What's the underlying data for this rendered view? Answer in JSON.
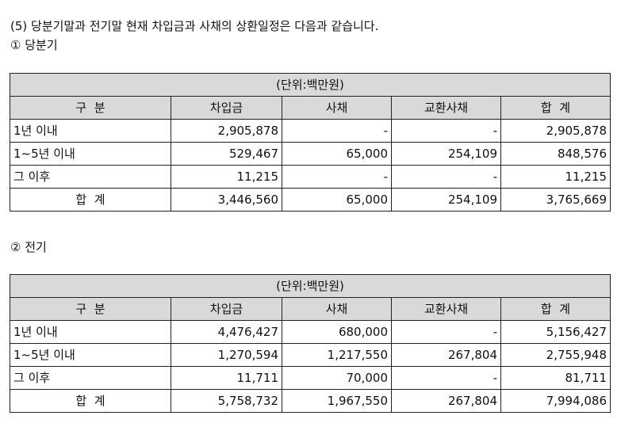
{
  "title": "(5) 당분기말과 전기말 현재 차입금과 사채의 상환일정은 다음과 같습니다.",
  "sections": [
    {
      "heading": "① 당분기",
      "unit": "(단위:백만원)",
      "headers": [
        "구  분",
        "차입금",
        "사채",
        "교환사채",
        "합  계"
      ],
      "rows": [
        {
          "label": "1년 이내",
          "values": [
            "2,905,878",
            "-",
            "-",
            "2,905,878"
          ]
        },
        {
          "label": "1~5년 이내",
          "values": [
            "529,467",
            "65,000",
            "254,109",
            "848,576"
          ]
        },
        {
          "label": "그 이후",
          "values": [
            "11,215",
            "-",
            "-",
            "11,215"
          ]
        },
        {
          "label": "합  계",
          "values": [
            "3,446,560",
            "65,000",
            "254,109",
            "3,765,669"
          ]
        }
      ]
    },
    {
      "heading": "② 전기",
      "unit": "(단위:백만원)",
      "headers": [
        "구  분",
        "차입금",
        "사채",
        "교환사채",
        "합  계"
      ],
      "rows": [
        {
          "label": "1년 이내",
          "values": [
            "4,476,427",
            "680,000",
            "-",
            "5,156,427"
          ]
        },
        {
          "label": "1~5년 이내",
          "values": [
            "1,270,594",
            "1,217,550",
            "267,804",
            "2,755,948"
          ]
        },
        {
          "label": "그 이후",
          "values": [
            "11,711",
            "70,000",
            "-",
            "81,711"
          ]
        },
        {
          "label": "합  계",
          "values": [
            "5,758,732",
            "1,967,550",
            "267,804",
            "7,994,086"
          ]
        }
      ]
    }
  ]
}
